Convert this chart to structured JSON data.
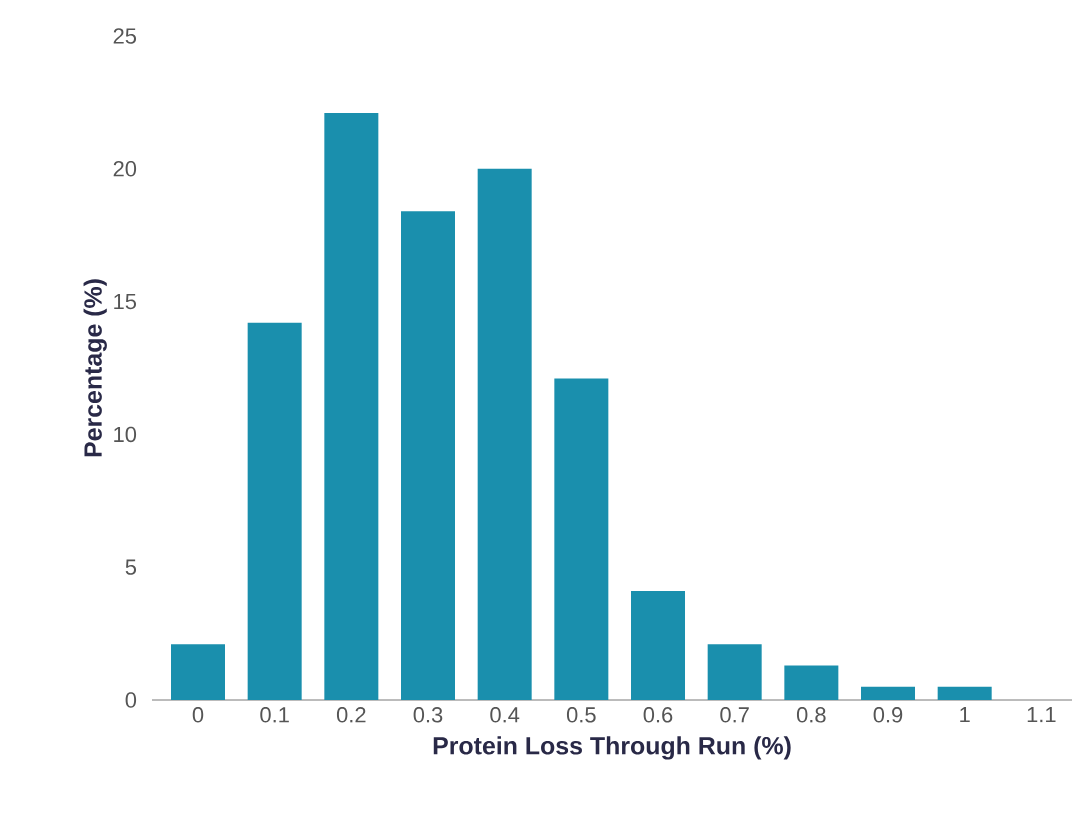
{
  "chart_data": {
    "type": "bar",
    "xlabel": "Protein Loss Through Run (%)",
    "ylabel": "Percentage (%)",
    "categories": [
      "0",
      "0.1",
      "0.2",
      "0.3",
      "0.4",
      "0.5",
      "0.6",
      "0.7",
      "0.8",
      "0.9",
      "1",
      "1.1"
    ],
    "values": [
      2.1,
      14.2,
      22.1,
      18.4,
      20.0,
      12.1,
      4.1,
      2.1,
      1.3,
      0.5,
      0.5,
      0
    ],
    "color": "#1a8fad",
    "ylim": [
      0,
      25
    ],
    "yticks": [
      0,
      5,
      10,
      15,
      20,
      25
    ]
  }
}
